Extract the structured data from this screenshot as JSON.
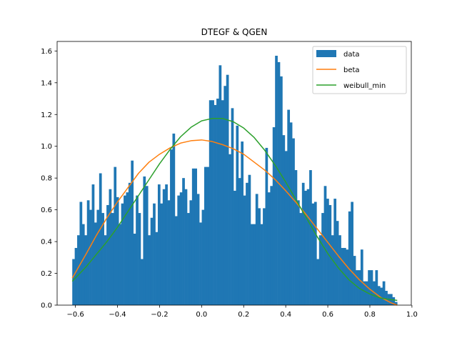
{
  "chart_data": {
    "type": "bar",
    "title": "DTEGF & QGEN",
    "xlabel": "",
    "ylabel": "",
    "xlim": [
      -0.687,
      0.997
    ],
    "ylim": [
      0,
      1.66
    ],
    "grid": false,
    "legend_position": "top-right",
    "x_ticks": [
      -0.6,
      -0.4,
      -0.2,
      0.0,
      0.2,
      0.4,
      0.6,
      0.8,
      1.0
    ],
    "x_tick_labels": [
      "−0.6",
      "−0.4",
      "−0.2",
      "0.0",
      "0.2",
      "0.4",
      "0.6",
      "0.8",
      "1.0"
    ],
    "y_ticks": [
      0.0,
      0.2,
      0.4,
      0.6,
      0.8,
      1.0,
      1.2,
      1.4,
      1.6
    ],
    "y_tick_labels": [
      "0.0",
      "0.2",
      "0.4",
      "0.6",
      "0.8",
      "1.0",
      "1.2",
      "1.4",
      "1.6"
    ],
    "histogram": {
      "name": "data",
      "color": "#1f77b4",
      "bin_start": -0.615,
      "bin_end": 0.93,
      "densities": [
        0.29,
        0.36,
        0.44,
        0.65,
        0.51,
        0.44,
        0.66,
        0.6,
        0.76,
        0.52,
        0.6,
        0.83,
        0.58,
        0.44,
        0.63,
        0.73,
        0.58,
        0.87,
        0.68,
        0.51,
        0.64,
        0.69,
        0.71,
        0.77,
        0.91,
        0.45,
        0.69,
        0.58,
        0.29,
        0.81,
        0.75,
        0.44,
        0.55,
        0.64,
        0.46,
        0.76,
        0.64,
        0.73,
        0.76,
        0.66,
        0.98,
        1.08,
        0.56,
        0.69,
        0.71,
        0.8,
        0.73,
        0.58,
        0.66,
        0.86,
        0.86,
        0.7,
        0.52,
        0.6,
        0.87,
        0.87,
        1.29,
        1.29,
        1.26,
        1.3,
        1.51,
        1.29,
        1.38,
        1.45,
        0.95,
        1.24,
        0.72,
        1.13,
        0.8,
        1.03,
        0.69,
        0.77,
        0.82,
        0.51,
        0.51,
        0.7,
        0.61,
        0.51,
        0.61,
        0.99,
        0.71,
        0.75,
        1.12,
        1.57,
        1.53,
        1.44,
        1.07,
        0.97,
        1.23,
        1.15,
        1.05,
        0.85,
        0.66,
        0.58,
        0.77,
        0.72,
        0.73,
        0.85,
        0.64,
        0.65,
        0.29,
        0.44,
        0.58,
        0.75,
        0.67,
        0.63,
        0.44,
        0.67,
        0.53,
        0.44,
        0.36,
        0.36,
        0.35,
        0.59,
        0.65,
        0.31,
        0.22,
        0.22,
        0.35,
        0.15,
        0.15,
        0.22,
        0.22,
        0.15,
        0.22,
        0.12,
        0.11,
        0.15,
        0.09,
        0.07,
        0.07,
        0.05,
        0.02
      ]
    },
    "series": [
      {
        "name": "beta",
        "type": "line",
        "color": "#ff7f0e",
        "x": [
          -0.615,
          -0.55,
          -0.5,
          -0.45,
          -0.4,
          -0.35,
          -0.3,
          -0.25,
          -0.2,
          -0.15,
          -0.1,
          -0.05,
          0.0,
          0.05,
          0.1,
          0.15,
          0.2,
          0.25,
          0.3,
          0.35,
          0.4,
          0.45,
          0.5,
          0.55,
          0.6,
          0.65,
          0.7,
          0.75,
          0.8,
          0.85,
          0.9,
          0.93
        ],
        "y": [
          0.17,
          0.32,
          0.44,
          0.55,
          0.65,
          0.74,
          0.83,
          0.9,
          0.95,
          0.99,
          1.02,
          1.035,
          1.04,
          1.03,
          1.01,
          0.985,
          0.95,
          0.9,
          0.85,
          0.79,
          0.72,
          0.645,
          0.565,
          0.48,
          0.395,
          0.31,
          0.23,
          0.16,
          0.1,
          0.05,
          0.015,
          0.0
        ]
      },
      {
        "name": "weibull_min",
        "type": "line",
        "color": "#2ca02c",
        "x": [
          -0.615,
          -0.55,
          -0.5,
          -0.45,
          -0.4,
          -0.35,
          -0.3,
          -0.25,
          -0.2,
          -0.15,
          -0.1,
          -0.05,
          0.0,
          0.05,
          0.1,
          0.15,
          0.2,
          0.25,
          0.3,
          0.35,
          0.4,
          0.45,
          0.5,
          0.55,
          0.6,
          0.65,
          0.7,
          0.75,
          0.8,
          0.85,
          0.9,
          0.93
        ],
        "y": [
          0.15,
          0.24,
          0.32,
          0.4,
          0.49,
          0.59,
          0.69,
          0.79,
          0.89,
          0.98,
          1.06,
          1.12,
          1.16,
          1.175,
          1.175,
          1.155,
          1.115,
          1.055,
          0.975,
          0.88,
          0.775,
          0.66,
          0.545,
          0.43,
          0.325,
          0.235,
          0.16,
          0.105,
          0.07,
          0.045,
          0.035,
          0.03
        ]
      }
    ]
  },
  "legend": {
    "items": [
      {
        "label": "data",
        "color": "#1f77b4",
        "kind": "patch"
      },
      {
        "label": "beta",
        "color": "#ff7f0e",
        "kind": "line"
      },
      {
        "label": "weibull_min",
        "color": "#2ca02c",
        "kind": "line"
      }
    ]
  }
}
